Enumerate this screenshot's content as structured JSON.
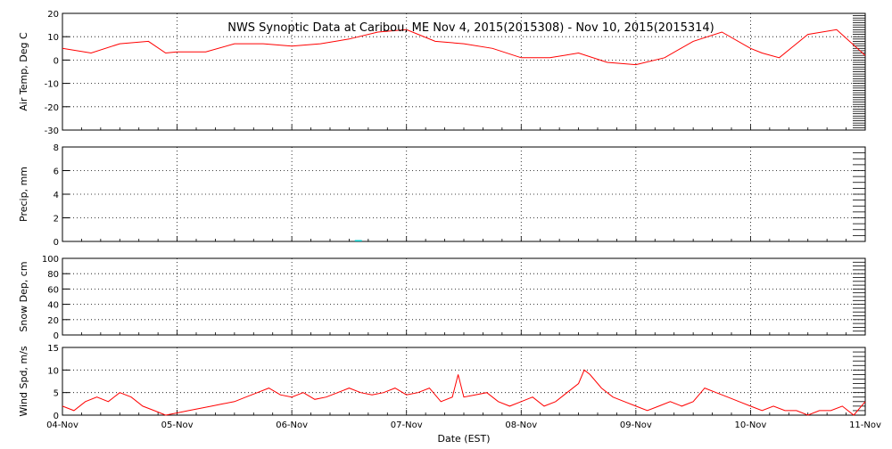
{
  "title": "NWS Synoptic Data at Caribou, ME   Nov  4, 2015(2015308) - Nov 10, 2015(2015314)",
  "xlabel": "Date (EST)",
  "x_ticks": [
    "04-Nov",
    "05-Nov",
    "06-Nov",
    "07-Nov",
    "08-Nov",
    "09-Nov",
    "10-Nov",
    "11-Nov"
  ],
  "colors": {
    "temp_line": "#ff0000",
    "wind_line": "#ff0000",
    "precip_bar": "#00c8c8",
    "axis": "#000000",
    "grid": "#000000"
  },
  "chart_data": [
    {
      "type": "line",
      "ylabel": "Air Temp, Deg C",
      "ylim": [
        -30,
        20
      ],
      "yticks": [
        -30,
        -20,
        -10,
        0,
        10,
        20
      ],
      "grid": true,
      "series": [
        {
          "x_days": [
            0,
            0.25,
            0.5,
            0.75,
            0.9,
            1,
            1.25,
            1.5,
            1.75,
            2,
            2.25,
            2.5,
            2.75,
            3,
            3.25,
            3.5,
            3.75,
            4,
            4.25,
            4.5,
            4.75,
            5,
            5.25,
            5.5,
            5.75,
            6,
            6.1,
            6.25,
            6.5,
            6.75,
            7
          ],
          "values": [
            5,
            3,
            7,
            8,
            3,
            3.5,
            3.5,
            7,
            7,
            6,
            7,
            9,
            12,
            13,
            8,
            7,
            5,
            1,
            1,
            3,
            -1,
            -2,
            1,
            8,
            12,
            5,
            3,
            1,
            11,
            13,
            2
          ]
        }
      ]
    },
    {
      "type": "bar",
      "ylabel": "Precip, mm",
      "ylim": [
        0,
        8
      ],
      "yticks": [
        0,
        2,
        4,
        6,
        8
      ],
      "grid": true,
      "series": [
        {
          "x_days": [
            2.58
          ],
          "values": [
            0.1
          ]
        }
      ]
    },
    {
      "type": "line",
      "ylabel": "Snow Dep, cm",
      "ylim": [
        0,
        100
      ],
      "yticks": [
        0,
        20,
        40,
        60,
        80,
        100
      ],
      "grid": true,
      "series": [
        {
          "x_days": [],
          "values": []
        }
      ]
    },
    {
      "type": "line",
      "ylabel": "Wind Spd, m/s",
      "ylim": [
        0,
        15
      ],
      "yticks": [
        0,
        5,
        10,
        15
      ],
      "grid": true,
      "series": [
        {
          "x_days": [
            0,
            0.1,
            0.2,
            0.3,
            0.4,
            0.5,
            0.6,
            0.7,
            0.8,
            0.9,
            1,
            1.1,
            1.2,
            1.3,
            1.4,
            1.5,
            1.6,
            1.7,
            1.8,
            1.9,
            2,
            2.1,
            2.2,
            2.3,
            2.4,
            2.5,
            2.6,
            2.7,
            2.8,
            2.9,
            3,
            3.1,
            3.2,
            3.3,
            3.4,
            3.45,
            3.5,
            3.6,
            3.7,
            3.8,
            3.9,
            4,
            4.1,
            4.2,
            4.3,
            4.4,
            4.5,
            4.55,
            4.6,
            4.7,
            4.8,
            4.9,
            5,
            5.1,
            5.2,
            5.3,
            5.4,
            5.5,
            5.6,
            5.7,
            5.8,
            5.9,
            6,
            6.1,
            6.2,
            6.3,
            6.4,
            6.5,
            6.6,
            6.7,
            6.8,
            6.9,
            7
          ],
          "values": [
            2,
            1,
            3,
            4,
            3,
            5,
            4,
            2,
            1,
            0,
            0.5,
            1,
            1.5,
            2,
            2.5,
            3,
            4,
            5,
            6,
            4.5,
            4,
            5,
            3.5,
            4,
            5,
            6,
            5,
            4.5,
            5,
            6,
            4.5,
            5,
            6,
            3,
            4,
            9,
            4,
            4.5,
            5,
            3,
            2,
            3,
            4,
            2,
            3,
            5,
            7,
            10,
            9,
            6,
            4,
            3,
            2,
            1,
            2,
            3,
            2,
            3,
            6,
            5,
            4,
            3,
            2,
            1,
            2,
            1,
            1,
            0,
            1,
            1,
            2,
            0,
            3
          ]
        }
      ]
    }
  ]
}
